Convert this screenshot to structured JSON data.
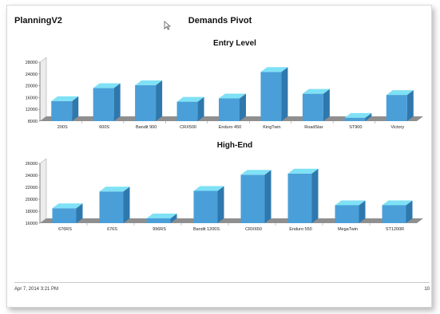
{
  "header": {
    "app_title": "PlanningV2",
    "report_title": "Demands Pivot"
  },
  "footer": {
    "timestamp": "Apr 7, 2014 3:21 PM",
    "page_number": "10"
  },
  "colors": {
    "bar_front": "#4a9fd8",
    "bar_top": "#7fe1f5",
    "bar_side": "#2f78ad",
    "floor": "#8f8f8f"
  },
  "chart_data": [
    {
      "type": "bar",
      "title": "Entry Level",
      "categories": [
        "200S",
        "600S",
        "Bandit 900",
        "CRX500",
        "Enduro 450",
        "KingTwin",
        "RoadStar",
        "ST900",
        "Victory"
      ],
      "values": [
        14800,
        19200,
        20200,
        14600,
        15700,
        24700,
        17300,
        9100,
        16900
      ],
      "yticks": [
        8000,
        12000,
        16000,
        20000,
        24000,
        28000
      ],
      "ylim": [
        8000,
        28000
      ]
    },
    {
      "type": "bar",
      "title": "High-End",
      "categories": [
        "676RS",
        "676S",
        "996RS",
        "Bandit 1200S",
        "CRX650",
        "Enduro 550",
        "MegaTwin",
        "ST1200R"
      ],
      "values": [
        18500,
        21300,
        16800,
        21400,
        24100,
        24300,
        19000,
        19000
      ],
      "yticks": [
        16000,
        18000,
        20000,
        22000,
        24000,
        26000
      ],
      "ylim": [
        16000,
        26000
      ]
    }
  ]
}
